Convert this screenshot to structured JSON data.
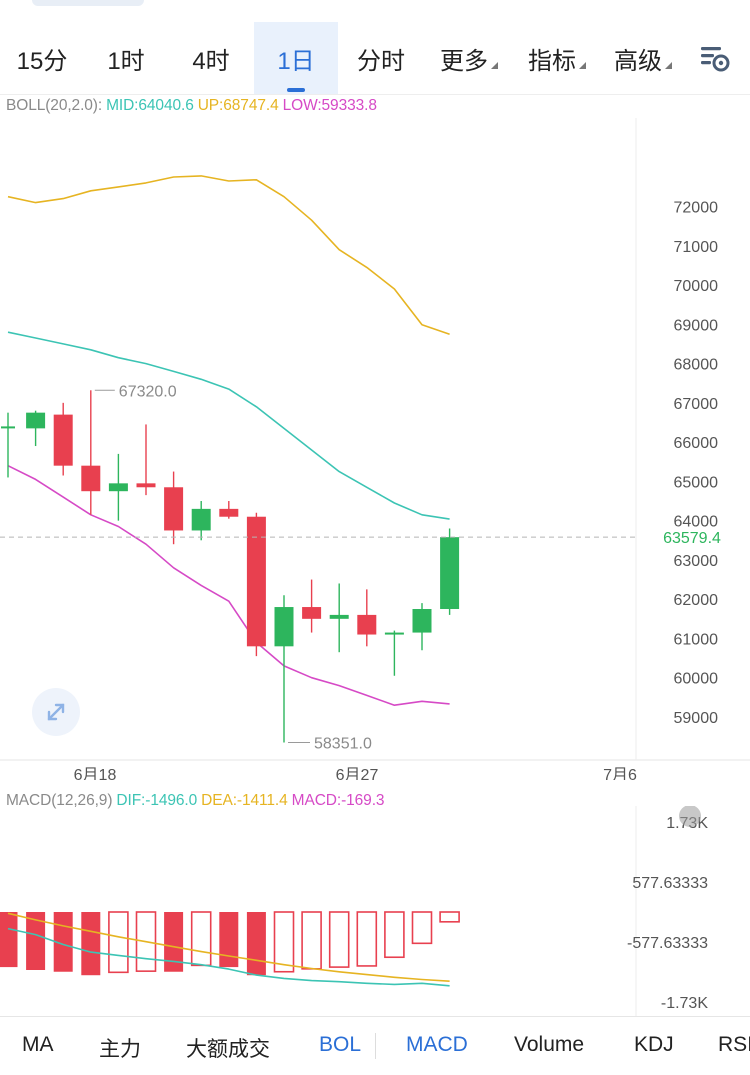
{
  "tabs": [
    {
      "label": "15分",
      "dropdown": false,
      "active": false
    },
    {
      "label": "1时",
      "dropdown": false,
      "active": false
    },
    {
      "label": "4时",
      "dropdown": false,
      "active": false
    },
    {
      "label": "1日",
      "dropdown": false,
      "active": true
    },
    {
      "label": "分时",
      "dropdown": false,
      "active": false
    },
    {
      "label": "更多",
      "dropdown": true,
      "active": false
    },
    {
      "label": "指标",
      "dropdown": true,
      "active": false
    },
    {
      "label": "高级",
      "dropdown": true,
      "active": false
    }
  ],
  "settings_icon": "chart-settings-icon",
  "expand_icon": "expand-arrows-icon",
  "boll": {
    "label": "BOLL(20,2.0):",
    "mid": "MID:64040.6",
    "up": "UP:68747.4",
    "low": "LOW:59333.8"
  },
  "macd": {
    "label": "MACD(12,26,9)",
    "dif": "DIF:-1496.0",
    "dea": "DEA:-1411.4",
    "macd": "MACD:-169.3"
  },
  "colors": {
    "up": "#2db55d",
    "down": "#e8404f",
    "mid_line": "#3cc4b4",
    "upper_line": "#e6b422",
    "lower_line": "#d64ac6",
    "active": "#2b6fd6"
  },
  "chart_data": [
    {
      "type": "candlestick",
      "title": "BOLL(20,2.0)",
      "y_ticks": [
        59000,
        60000,
        61000,
        62000,
        63000,
        64000,
        65000,
        66000,
        67000,
        68000,
        69000,
        70000,
        71000,
        72000
      ],
      "y_tick_labels": [
        "59000",
        "60000",
        "61000",
        "62000",
        "63000",
        "64000",
        "65000",
        "66000",
        "67000",
        "68000",
        "69000",
        "70000",
        "71000",
        "72000"
      ],
      "x_labels": [
        "6月18",
        "6月27",
        "7月6"
      ],
      "current_price": 63579.4,
      "current_price_label": "63579.4",
      "high_marker": {
        "value": 67320.0,
        "label": "67320.0"
      },
      "low_marker": {
        "value": 58351.0,
        "label": "58351.0"
      },
      "candles": [
        {
          "o": 66400,
          "h": 66750,
          "l": 65100,
          "c": 66400
        },
        {
          "o": 66350,
          "h": 66800,
          "l": 65900,
          "c": 66750
        },
        {
          "o": 66700,
          "h": 67000,
          "l": 65150,
          "c": 65400
        },
        {
          "o": 65400,
          "h": 67320,
          "l": 64150,
          "c": 64750
        },
        {
          "o": 64750,
          "h": 65700,
          "l": 64000,
          "c": 64950
        },
        {
          "o": 64950,
          "h": 66450,
          "l": 64650,
          "c": 64850
        },
        {
          "o": 64850,
          "h": 65250,
          "l": 63400,
          "c": 63750
        },
        {
          "o": 63750,
          "h": 64500,
          "l": 63500,
          "c": 64300
        },
        {
          "o": 64300,
          "h": 64500,
          "l": 64050,
          "c": 64100
        },
        {
          "o": 64100,
          "h": 64200,
          "l": 60550,
          "c": 60800
        },
        {
          "o": 60800,
          "h": 62100,
          "l": 58351,
          "c": 61800
        },
        {
          "o": 61800,
          "h": 62500,
          "l": 61150,
          "c": 61500
        },
        {
          "o": 61500,
          "h": 62400,
          "l": 60650,
          "c": 61600
        },
        {
          "o": 61600,
          "h": 62250,
          "l": 60800,
          "c": 61100
        },
        {
          "o": 61100,
          "h": 61200,
          "l": 60050,
          "c": 61150
        },
        {
          "o": 61150,
          "h": 61900,
          "l": 60700,
          "c": 61750
        },
        {
          "o": 61750,
          "h": 63800,
          "l": 61600,
          "c": 63579.4
        }
      ],
      "boll_upper": [
        72250,
        72100,
        72200,
        72400,
        72500,
        72600,
        72750,
        72780,
        72650,
        72680,
        72250,
        71650,
        70900,
        70450,
        69900,
        68990,
        68747.4
      ],
      "boll_mid": [
        68800,
        68650,
        68500,
        68350,
        68150,
        68000,
        67800,
        67600,
        67350,
        66900,
        66350,
        65800,
        65250,
        64850,
        64450,
        64150,
        64040.6
      ],
      "boll_lower": [
        65400,
        65050,
        64600,
        64150,
        63850,
        63400,
        62800,
        62350,
        61950,
        60900,
        60300,
        60000,
        59800,
        59550,
        59300,
        59400,
        59333.8
      ]
    },
    {
      "type": "macd",
      "title": "MACD(12,26,9)",
      "y_tick_labels": [
        "1.73K",
        "577.63333",
        "-577.63333",
        "-1.73K"
      ],
      "y_range": [
        -1730,
        1730
      ],
      "histogram": [
        -950,
        -1000,
        -1030,
        -1090,
        -1040,
        -1020,
        -1030,
        -920,
        -950,
        -1090,
        -1030,
        -980,
        -950,
        -930,
        -780,
        -540,
        -169.3
      ],
      "dif": [
        -450,
        -560,
        -740,
        -880,
        -940,
        -1000,
        -1050,
        -1110,
        -1190,
        -1300,
        -1360,
        -1400,
        -1420,
        -1450,
        -1470,
        -1450,
        -1496.0
      ],
      "dea": [
        -170,
        -290,
        -400,
        -500,
        -600,
        -690,
        -780,
        -870,
        -950,
        -1030,
        -1110,
        -1180,
        -1240,
        -1290,
        -1340,
        -1380,
        -1411.4
      ]
    }
  ],
  "indicators": [
    {
      "label": "MA",
      "active": false
    },
    {
      "label": "主力",
      "active": false
    },
    {
      "label": "大额成交",
      "active": false
    },
    {
      "label": "BOL",
      "active": true
    },
    {
      "label": "MACD",
      "active": true
    },
    {
      "label": "Volume",
      "active": false
    },
    {
      "label": "KDJ",
      "active": false
    },
    {
      "label": "RSI",
      "active": false
    }
  ]
}
